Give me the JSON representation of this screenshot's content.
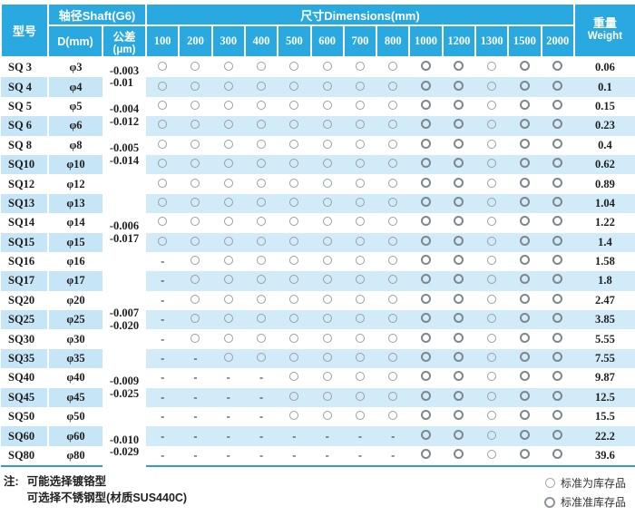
{
  "colors": {
    "header_blue": "#2aa9e0",
    "stripe_blue": "#d2ebf9",
    "stripe_blue_left": "#c6e5f6",
    "circle_gray": "#9aa0a5",
    "circle_gray_bold": "#7e878d",
    "bottom_rule": "#2f9ccd"
  },
  "table": {
    "headers": {
      "model": "型号",
      "shaft_group": "轴径Shaft(G6)",
      "diameter": "D(mm)",
      "tolerance_cn": "公差",
      "tolerance_unit": "(μm)",
      "dimensions_group": "尺寸Dimensions(mm)",
      "lengths": [
        "100",
        "200",
        "300",
        "400",
        "500",
        "600",
        "700",
        "800",
        "1000",
        "1200",
        "1300",
        "1500",
        "2000"
      ],
      "weight_cn": "重量",
      "weight_en": "Weight"
    },
    "tolerance_groups": [
      {
        "rows": 2,
        "lines": [
          "-0.003",
          "-0.01"
        ]
      },
      {
        "rows": 2,
        "lines": [
          "-0.004",
          "-0.012"
        ]
      },
      {
        "rows": 2,
        "lines": [
          "-0.005",
          "-0.014"
        ]
      },
      {
        "rows": 6,
        "lines": [
          "-0.006",
          "-0.017"
        ]
      },
      {
        "rows": 3,
        "lines": [
          "-0.007",
          "-0.020"
        ]
      },
      {
        "rows": 4,
        "lines": [
          "-0.009",
          "-0.025"
        ]
      },
      {
        "rows": 2,
        "lines": [
          "-0.010",
          "-0.029"
        ]
      }
    ],
    "rows": [
      {
        "model": "SQ 3",
        "d": "φ3",
        "cells": [
          "o",
          "o",
          "o",
          "o",
          "o",
          "o",
          "o",
          "o",
          "O",
          "O",
          "o",
          "O",
          "O"
        ],
        "weight": "0.06"
      },
      {
        "model": "SQ 4",
        "d": "φ4",
        "cells": [
          "o",
          "o",
          "o",
          "o",
          "o",
          "o",
          "o",
          "o",
          "O",
          "O",
          "o",
          "O",
          "O"
        ],
        "weight": "0.1"
      },
      {
        "model": "SQ 5",
        "d": "φ5",
        "cells": [
          "o",
          "o",
          "o",
          "o",
          "o",
          "o",
          "o",
          "o",
          "O",
          "O",
          "o",
          "O",
          "O"
        ],
        "weight": "0.15"
      },
      {
        "model": "SQ 6",
        "d": "φ6",
        "cells": [
          "o",
          "o",
          "o",
          "o",
          "o",
          "o",
          "o",
          "o",
          "O",
          "O",
          "o",
          "O",
          "O"
        ],
        "weight": "0.23"
      },
      {
        "model": "SQ 8",
        "d": "φ8",
        "cells": [
          "o",
          "o",
          "o",
          "o",
          "o",
          "o",
          "o",
          "o",
          "O",
          "O",
          "o",
          "O",
          "O"
        ],
        "weight": "0.4"
      },
      {
        "model": "SQ10",
        "d": "φ10",
        "cells": [
          "o",
          "o",
          "o",
          "o",
          "o",
          "o",
          "o",
          "o",
          "O",
          "O",
          "o",
          "O",
          "O"
        ],
        "weight": "0.62"
      },
      {
        "model": "SQ12",
        "d": "φ12",
        "cells": [
          "o",
          "o",
          "o",
          "o",
          "o",
          "o",
          "o",
          "o",
          "O",
          "O",
          "o",
          "O",
          "O"
        ],
        "weight": "0.89"
      },
      {
        "model": "SQ13",
        "d": "φ13",
        "cells": [
          "o",
          "o",
          "o",
          "o",
          "o",
          "o",
          "o",
          "o",
          "O",
          "O",
          "o",
          "O",
          "O"
        ],
        "weight": "1.04"
      },
      {
        "model": "SQ14",
        "d": "φ14",
        "cells": [
          "o",
          "o",
          "o",
          "o",
          "o",
          "o",
          "o",
          "o",
          "O",
          "O",
          "o",
          "O",
          "O"
        ],
        "weight": "1.22"
      },
      {
        "model": "SQ15",
        "d": "φ15",
        "cells": [
          "o",
          "o",
          "o",
          "o",
          "o",
          "o",
          "o",
          "o",
          "O",
          "O",
          "o",
          "O",
          "O"
        ],
        "weight": "1.4"
      },
      {
        "model": "SQ16",
        "d": "φ16",
        "cells": [
          "-",
          "o",
          "o",
          "o",
          "o",
          "o",
          "o",
          "o",
          "O",
          "O",
          "o",
          "O",
          "O"
        ],
        "weight": "1.58"
      },
      {
        "model": "SQ17",
        "d": "φ17",
        "cells": [
          "-",
          "o",
          "o",
          "o",
          "o",
          "o",
          "o",
          "o",
          "O",
          "O",
          "o",
          "O",
          "O"
        ],
        "weight": "1.8"
      },
      {
        "model": "SQ20",
        "d": "φ20",
        "cells": [
          "-",
          "o",
          "o",
          "o",
          "o",
          "o",
          "o",
          "o",
          "O",
          "O",
          "o",
          "O",
          "O"
        ],
        "weight": "2.47"
      },
      {
        "model": "SQ25",
        "d": "φ25",
        "cells": [
          "-",
          "o",
          "o",
          "o",
          "o",
          "o",
          "o",
          "o",
          "O",
          "O",
          "o",
          "O",
          "O"
        ],
        "weight": "3.85"
      },
      {
        "model": "SQ30",
        "d": "φ30",
        "cells": [
          "-",
          "o",
          "o",
          "o",
          "o",
          "o",
          "o",
          "o",
          "O",
          "O",
          "o",
          "O",
          "O"
        ],
        "weight": "5.55"
      },
      {
        "model": "SQ35",
        "d": "φ35",
        "cells": [
          "-",
          "-",
          "o",
          "o",
          "o",
          "o",
          "o",
          "o",
          "O",
          "O",
          "o",
          "O",
          "O"
        ],
        "weight": "7.55"
      },
      {
        "model": "SQ40",
        "d": "φ40",
        "cells": [
          "-",
          "-",
          "-",
          "-",
          "o",
          "o",
          "o",
          "o",
          "O",
          "O",
          "o",
          "O",
          "O"
        ],
        "weight": "9.87"
      },
      {
        "model": "SQ45",
        "d": "φ45",
        "cells": [
          "-",
          "-",
          "-",
          "-",
          "o",
          "o",
          "o",
          "o",
          "O",
          "O",
          "o",
          "O",
          "O"
        ],
        "weight": "12.5"
      },
      {
        "model": "SQ50",
        "d": "φ50",
        "cells": [
          "-",
          "-",
          "-",
          "-",
          "o",
          "o",
          "o",
          "o",
          "O",
          "O",
          "o",
          "O",
          "O"
        ],
        "weight": "15.5"
      },
      {
        "model": "SQ60",
        "d": "φ60",
        "cells": [
          "-",
          "-",
          "-",
          "-",
          "-",
          "-",
          "-",
          "-",
          "O",
          "O",
          "o",
          "O",
          "O"
        ],
        "weight": "22.2"
      },
      {
        "model": "SQ80",
        "d": "φ80",
        "cells": [
          "-",
          "-",
          "-",
          "-",
          "-",
          "-",
          "-",
          "-",
          "O",
          "O",
          "o",
          "O",
          "O"
        ],
        "weight": "39.6"
      }
    ]
  },
  "notes": {
    "label": "注:",
    "line1": "可能选择镀铬型",
    "line2": "可选择不锈钢型(材质SUS440C)"
  },
  "legend": [
    {
      "symbol": "circle-thin",
      "label": "标准为库存品"
    },
    {
      "symbol": "circle-bold",
      "label": "标准准库存品"
    }
  ]
}
